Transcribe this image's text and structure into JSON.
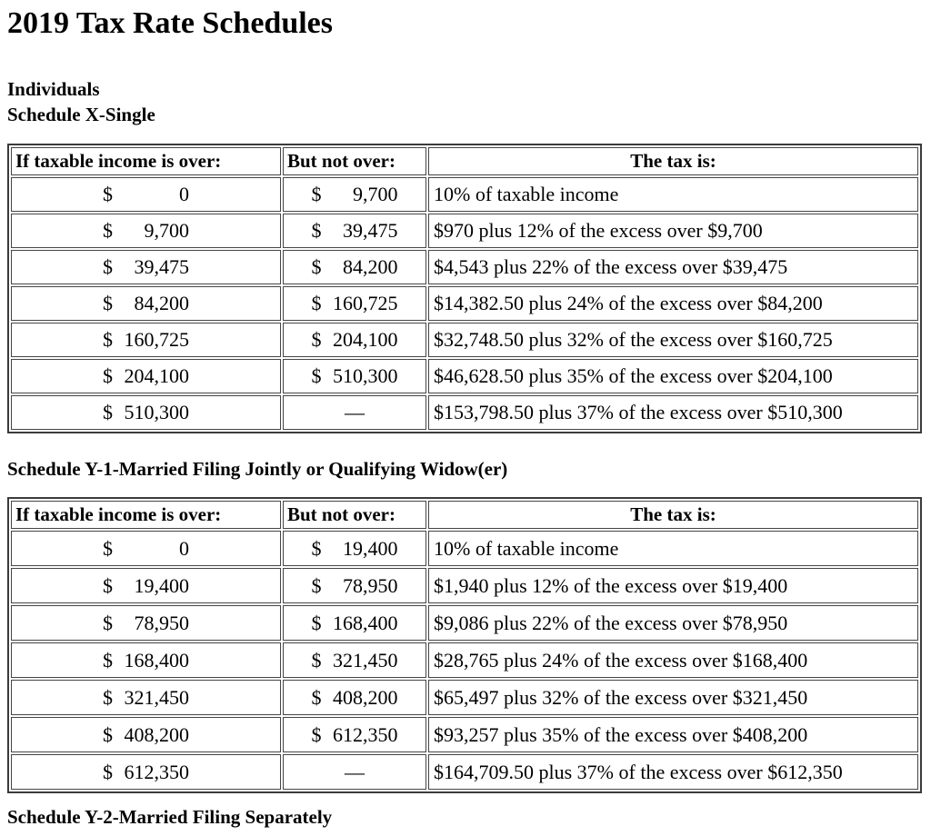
{
  "title": "2019 Tax Rate Schedules",
  "intro": {
    "line1": "Individuals",
    "line2": "Schedule X-Single"
  },
  "section2_heading": "Schedule Y-1-Married Filing Jointly or Qualifying Widow(er)",
  "cropped_next_heading": "Schedule Y-2-Married Filing Separately",
  "currency_symbol": "$",
  "dash": "—",
  "table_headers": [
    "If taxable income is over:",
    "But not over:",
    "The tax is:"
  ],
  "tables": [
    {
      "id": "schedule-x-single",
      "rows": [
        {
          "over": "0",
          "not_over": "9,700",
          "tax": "10% of taxable income"
        },
        {
          "over": "9,700",
          "not_over": "39,475",
          "tax": "$970 plus 12% of the excess over $9,700"
        },
        {
          "over": "39,475",
          "not_over": "84,200",
          "tax": "$4,543 plus 22% of the excess over $39,475"
        },
        {
          "over": "84,200",
          "not_over": "160,725",
          "tax": "$14,382.50 plus 24% of the excess over $84,200"
        },
        {
          "over": "160,725",
          "not_over": "204,100",
          "tax": "$32,748.50 plus 32% of the excess over $160,725"
        },
        {
          "over": "204,100",
          "not_over": "510,300",
          "tax": "$46,628.50 plus 35% of the excess over $204,100"
        },
        {
          "over": "510,300",
          "not_over": null,
          "tax": "$153,798.50 plus 37% of the excess over $510,300"
        }
      ]
    },
    {
      "id": "schedule-y1-married-filing-jointly",
      "rows": [
        {
          "over": "0",
          "not_over": "19,400",
          "tax": "10% of taxable income"
        },
        {
          "over": "19,400",
          "not_over": "78,950",
          "tax": "$1,940 plus 12% of the excess over $19,400"
        },
        {
          "over": "78,950",
          "not_over": "168,400",
          "tax": "$9,086 plus 22% of the excess over $78,950"
        },
        {
          "over": "168,400",
          "not_over": "321,450",
          "tax": "$28,765 plus 24% of the excess over $168,400"
        },
        {
          "over": "321,450",
          "not_over": "408,200",
          "tax": "$65,497 plus 32% of the excess over $321,450"
        },
        {
          "over": "408,200",
          "not_over": "612,350",
          "tax": "$93,257 plus 35% of the excess over $408,200"
        },
        {
          "over": "612,350",
          "not_over": null,
          "tax": "$164,709.50 plus 37% of the excess over $612,350"
        }
      ]
    }
  ]
}
